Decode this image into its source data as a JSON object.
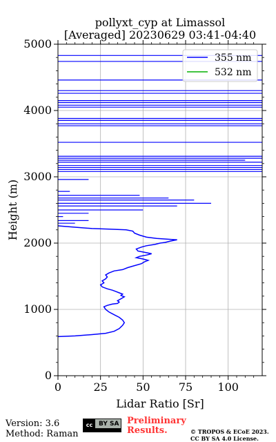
{
  "chart_data": {
    "type": "line",
    "title": "pollyxt_cyp at Limassol",
    "subtitle": "[Averaged] 20230629 03:41-04:40",
    "xlabel": "Lidar Ratio [Sr]",
    "ylabel": "Height (m)",
    "xlim": [
      0,
      120
    ],
    "ylim": [
      0,
      5000
    ],
    "xticks": [
      "0",
      "25",
      "50",
      "75",
      "100"
    ],
    "yticks": [
      "0",
      "1000",
      "2000",
      "3000",
      "4000",
      "5000"
    ],
    "grid": true,
    "legend_position": "top-right",
    "series": [
      {
        "name": "355 nm",
        "color": "#0000ff",
        "points": [
          [
            0,
            590
          ],
          [
            10,
            600
          ],
          [
            20,
            620
          ],
          [
            28,
            640
          ],
          [
            33,
            670
          ],
          [
            36,
            710
          ],
          [
            38,
            760
          ],
          [
            39,
            800
          ],
          [
            38,
            840
          ],
          [
            36,
            880
          ],
          [
            33,
            920
          ],
          [
            30,
            960
          ],
          [
            28,
            1000
          ],
          [
            27,
            1040
          ],
          [
            29,
            1060
          ],
          [
            32,
            1080
          ],
          [
            35,
            1090
          ],
          [
            36,
            1110
          ],
          [
            35,
            1130
          ],
          [
            37,
            1160
          ],
          [
            39,
            1190
          ],
          [
            37,
            1210
          ],
          [
            38,
            1230
          ],
          [
            36,
            1250
          ],
          [
            34,
            1270
          ],
          [
            32,
            1290
          ],
          [
            29,
            1310
          ],
          [
            26,
            1340
          ],
          [
            25,
            1370
          ],
          [
            27,
            1400
          ],
          [
            26,
            1430
          ],
          [
            28,
            1460
          ],
          [
            29,
            1490
          ],
          [
            28,
            1520
          ],
          [
            30,
            1550
          ],
          [
            33,
            1580
          ],
          [
            38,
            1600
          ],
          [
            41,
            1630
          ],
          [
            45,
            1660
          ],
          [
            49,
            1690
          ],
          [
            51,
            1720
          ],
          [
            53,
            1740
          ],
          [
            50,
            1760
          ],
          [
            46,
            1780
          ],
          [
            48,
            1800
          ],
          [
            52,
            1820
          ],
          [
            55,
            1840
          ],
          [
            51,
            1860
          ],
          [
            47,
            1880
          ],
          [
            46,
            1910
          ],
          [
            49,
            1940
          ],
          [
            52,
            1960
          ],
          [
            57,
            1980
          ],
          [
            60,
            2000
          ],
          [
            63,
            2010
          ],
          [
            66,
            2030
          ],
          [
            70,
            2050
          ],
          [
            64,
            2060
          ],
          [
            58,
            2070
          ],
          [
            52,
            2090
          ],
          [
            48,
            2120
          ],
          [
            45,
            2150
          ],
          [
            44,
            2180
          ],
          [
            40,
            2200
          ],
          [
            30,
            2210
          ],
          [
            20,
            2220
          ],
          [
            10,
            2240
          ],
          [
            0,
            2260
          ]
        ]
      },
      {
        "name": "532 nm",
        "color": "#00b000",
        "points": []
      }
    ],
    "noise_segments_355": [
      [
        0,
        2960
      ],
      [
        18,
        2960
      ],
      [
        0,
        2780
      ],
      [
        7,
        2780
      ],
      [
        0,
        2720
      ],
      [
        48,
        2720
      ],
      [
        0,
        2680
      ],
      [
        65,
        2680
      ],
      [
        0,
        2650
      ],
      [
        80,
        2650
      ],
      [
        0,
        2600
      ],
      [
        90,
        2600
      ],
      [
        0,
        2560
      ],
      [
        70,
        2560
      ],
      [
        0,
        2500
      ],
      [
        50,
        2500
      ],
      [
        0,
        2450
      ],
      [
        18,
        2450
      ],
      [
        0,
        2400
      ],
      [
        3,
        2400
      ],
      [
        0,
        2340
      ],
      [
        18,
        2340
      ],
      [
        0,
        2300
      ],
      [
        10,
        2300
      ],
      [
        0,
        3080
      ],
      [
        120,
        3080
      ],
      [
        0,
        3110
      ],
      [
        120,
        3110
      ],
      [
        0,
        3140
      ],
      [
        120,
        3140
      ],
      [
        0,
        3170
      ],
      [
        120,
        3170
      ],
      [
        0,
        3220
      ],
      [
        120,
        3220
      ],
      [
        0,
        3250
      ],
      [
        110,
        3250
      ],
      [
        0,
        3280
      ],
      [
        120,
        3280
      ],
      [
        0,
        3310
      ],
      [
        120,
        3310
      ],
      [
        0,
        3520
      ],
      [
        120,
        3520
      ],
      [
        0,
        3770
      ],
      [
        120,
        3770
      ],
      [
        0,
        3800
      ],
      [
        120,
        3800
      ],
      [
        0,
        3850
      ],
      [
        120,
        3850
      ],
      [
        0,
        3880
      ],
      [
        120,
        3880
      ],
      [
        0,
        4050
      ],
      [
        120,
        4050
      ],
      [
        0,
        4080
      ],
      [
        120,
        4080
      ],
      [
        0,
        4120
      ],
      [
        120,
        4120
      ],
      [
        0,
        4150
      ],
      [
        120,
        4150
      ],
      [
        0,
        4260
      ],
      [
        120,
        4260
      ],
      [
        0,
        4300
      ],
      [
        120,
        4300
      ],
      [
        0,
        4460
      ],
      [
        120,
        4460
      ],
      [
        0,
        4740
      ],
      [
        120,
        4740
      ],
      [
        0,
        4830
      ],
      [
        120,
        4830
      ]
    ]
  },
  "footer": {
    "version": "Version: 3.6",
    "method": "Method: Raman",
    "preliminary_line1": "Preliminary",
    "preliminary_line2": "Results.",
    "license_line1": "© TROPOS & ECoE 2023.",
    "license_line2": "CC BY SA 4.0 License.",
    "cc_badge_text": "cc",
    "cc_badge_by": "BY",
    "cc_badge_sa": "SA"
  }
}
